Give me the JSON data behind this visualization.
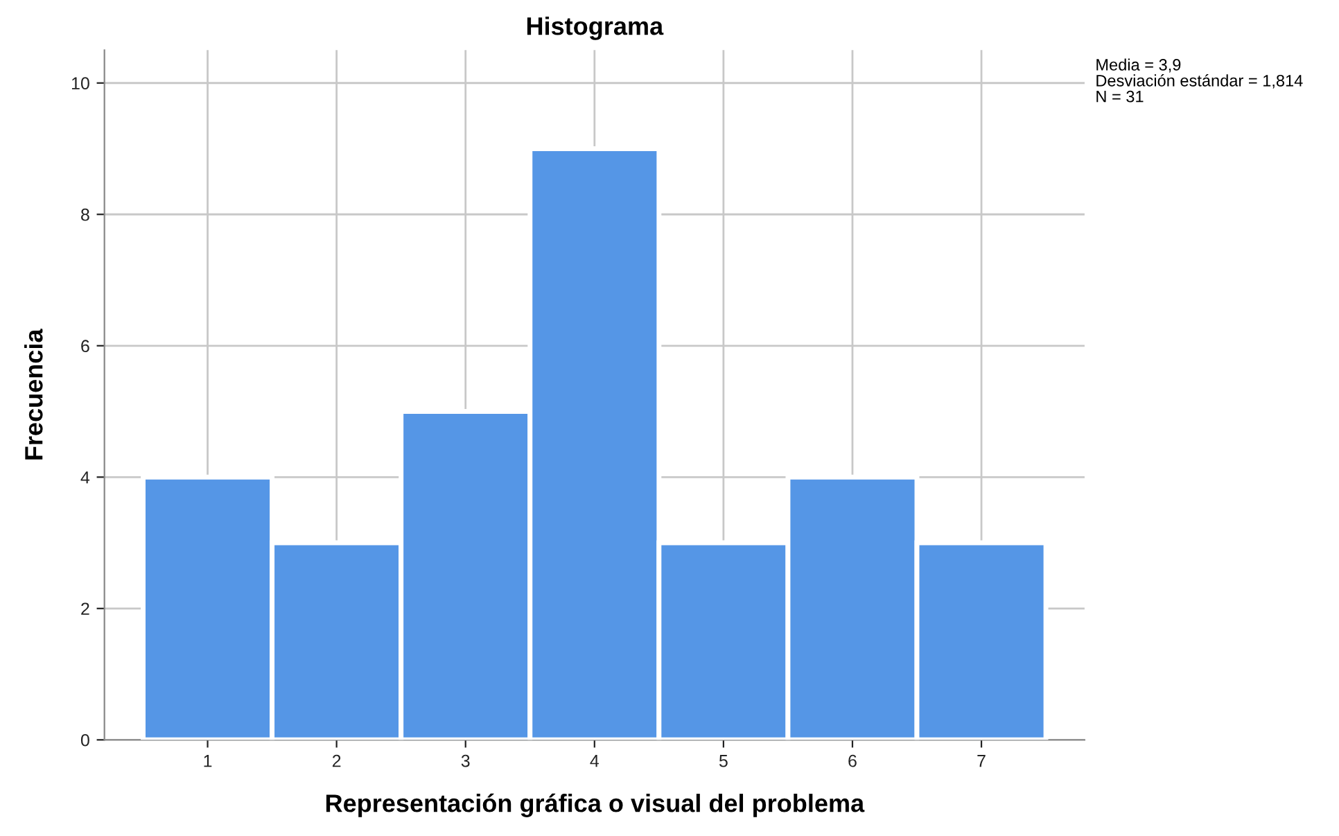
{
  "chart_data": {
    "type": "histogram",
    "title": "Histograma",
    "xlabel": "Representación gráfica o visual del problema",
    "ylabel": "Frecuencia",
    "bins": [
      0.5,
      1.5,
      2.5,
      3.5,
      4.5,
      5.5,
      6.5,
      7.5
    ],
    "values": [
      4,
      3,
      5,
      9,
      3,
      4,
      3
    ],
    "color": "#5596e6",
    "xlim": [
      0.2,
      7.8
    ],
    "xticks": [
      1,
      2,
      3,
      4,
      5,
      6,
      7
    ],
    "ylim": [
      0,
      10.5
    ],
    "yticks": [
      0,
      2,
      4,
      6,
      8,
      10
    ],
    "grid": true,
    "legend": false,
    "annotations": [
      "Media = 3,9",
      "Desviación estándar = 1,814",
      "N = 31"
    ]
  }
}
